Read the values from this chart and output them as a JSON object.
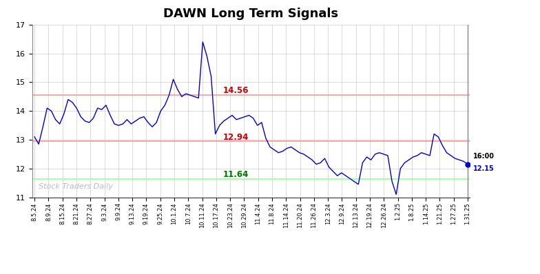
{
  "title": "DAWN Long Term Signals",
  "ylabel_min": 11,
  "ylabel_max": 17,
  "hline_red_upper": 14.56,
  "hline_red_lower": 12.94,
  "hline_green": 11.64,
  "label_red_upper": "14.56",
  "label_red_lower": "12.94",
  "label_green": "11.64",
  "last_price": 12.15,
  "last_time_label": "16:00",
  "watermark": "Stock Traders Daily",
  "x_labels": [
    "8.5.24",
    "8.9.24",
    "8.15.24",
    "8.21.24",
    "8.27.24",
    "9.3.24",
    "9.9.24",
    "9.13.24",
    "9.19.24",
    "9.25.24",
    "10.1.24",
    "10.7.24",
    "10.11.24",
    "10.17.24",
    "10.23.24",
    "10.29.24",
    "11.4.24",
    "11.8.24",
    "11.14.24",
    "11.20.24",
    "11.26.24",
    "12.3.24",
    "12.9.24",
    "12.13.24",
    "12.19.24",
    "12.26.24",
    "1.2.25",
    "1.8.25",
    "1.14.25",
    "1.21.25",
    "1.27.25",
    "1.31.25"
  ],
  "prices": [
    13.1,
    12.85,
    13.45,
    14.1,
    14.0,
    13.7,
    13.55,
    13.9,
    14.4,
    14.3,
    14.1,
    13.8,
    13.65,
    13.6,
    13.75,
    14.1,
    14.05,
    14.2,
    13.85,
    13.55,
    13.5,
    13.55,
    13.7,
    13.55,
    13.65,
    13.75,
    13.8,
    13.6,
    13.45,
    13.6,
    14.0,
    14.2,
    14.55,
    15.1,
    14.75,
    14.5,
    14.6,
    14.55,
    14.5,
    14.45,
    16.4,
    15.9,
    15.2,
    13.2,
    13.5,
    13.65,
    13.75,
    13.85,
    13.7,
    13.75,
    13.8,
    13.85,
    13.75,
    13.5,
    13.6,
    13.05,
    12.75,
    12.65,
    12.55,
    12.6,
    12.7,
    12.75,
    12.65,
    12.55,
    12.5,
    12.4,
    12.3,
    12.15,
    12.2,
    12.35,
    12.05,
    11.9,
    11.75,
    11.85,
    11.75,
    11.65,
    11.55,
    11.45,
    12.2,
    12.4,
    12.3,
    12.5,
    12.55,
    12.5,
    12.45,
    11.55,
    11.1,
    12.0,
    12.2,
    12.3,
    12.4,
    12.45,
    12.55,
    12.5,
    12.45,
    13.2,
    13.1,
    12.8,
    12.55,
    12.45,
    12.35,
    12.3,
    12.25,
    12.15
  ],
  "line_color": "#0000cc",
  "red_line_color": "#ffaaaa",
  "green_line_color": "#aaffaa",
  "label_red_color": "#cc0000",
  "label_green_color": "#007700",
  "dot_color": "#0000cc",
  "background_color": "#ffffff",
  "grid_color": "#cccccc"
}
